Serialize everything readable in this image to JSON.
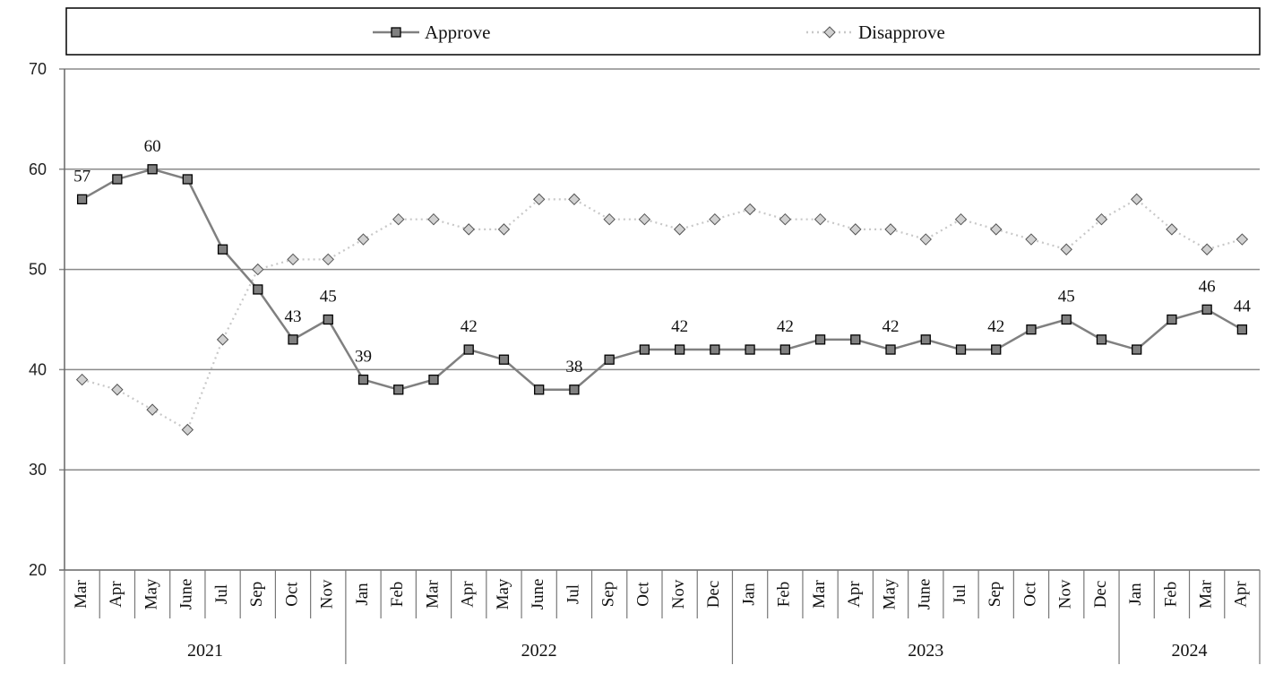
{
  "chart_data": {
    "type": "line",
    "ylim": [
      20,
      70
    ],
    "yticks": [
      20,
      30,
      40,
      50,
      60,
      70
    ],
    "grid": true,
    "legend_position": "top",
    "categories": [
      "Mar",
      "Apr",
      "May",
      "June",
      "Jul",
      "Sep",
      "Oct",
      "Nov",
      "Jan",
      "Feb",
      "Mar",
      "Apr",
      "May",
      "June",
      "Jul",
      "Sep",
      "Oct",
      "Nov",
      "Dec",
      "Jan",
      "Feb",
      "Mar",
      "Apr",
      "May",
      "June",
      "Jul",
      "Sep",
      "Oct",
      "Nov",
      "Dec",
      "Jan",
      "Feb",
      "Mar",
      "Apr"
    ],
    "years": [
      {
        "label": "2021",
        "start": 0,
        "end": 7
      },
      {
        "label": "2022",
        "start": 8,
        "end": 18
      },
      {
        "label": "2023",
        "start": 19,
        "end": 29
      },
      {
        "label": "2024",
        "start": 30,
        "end": 33
      }
    ],
    "series": [
      {
        "name": "Approve",
        "color": "#808080",
        "line_style": "solid",
        "marker": "square",
        "values": [
          57,
          59,
          60,
          59,
          52,
          48,
          43,
          45,
          39,
          38,
          39,
          42,
          41,
          38,
          38,
          41,
          42,
          42,
          42,
          42,
          42,
          43,
          43,
          42,
          43,
          42,
          42,
          44,
          45,
          43,
          42,
          45,
          46,
          44
        ],
        "labeled_points": [
          0,
          2,
          6,
          7,
          8,
          11,
          14,
          17,
          20,
          23,
          26,
          28,
          32,
          33
        ]
      },
      {
        "name": "Disapprove",
        "color": "#c8c8c8",
        "line_style": "dotted",
        "marker": "diamond",
        "values": [
          39,
          38,
          36,
          34,
          43,
          50,
          51,
          51,
          53,
          55,
          55,
          54,
          54,
          57,
          57,
          55,
          55,
          54,
          55,
          56,
          55,
          55,
          54,
          54,
          53,
          55,
          54,
          53,
          52,
          55,
          57,
          54,
          52,
          53
        ]
      }
    ]
  }
}
